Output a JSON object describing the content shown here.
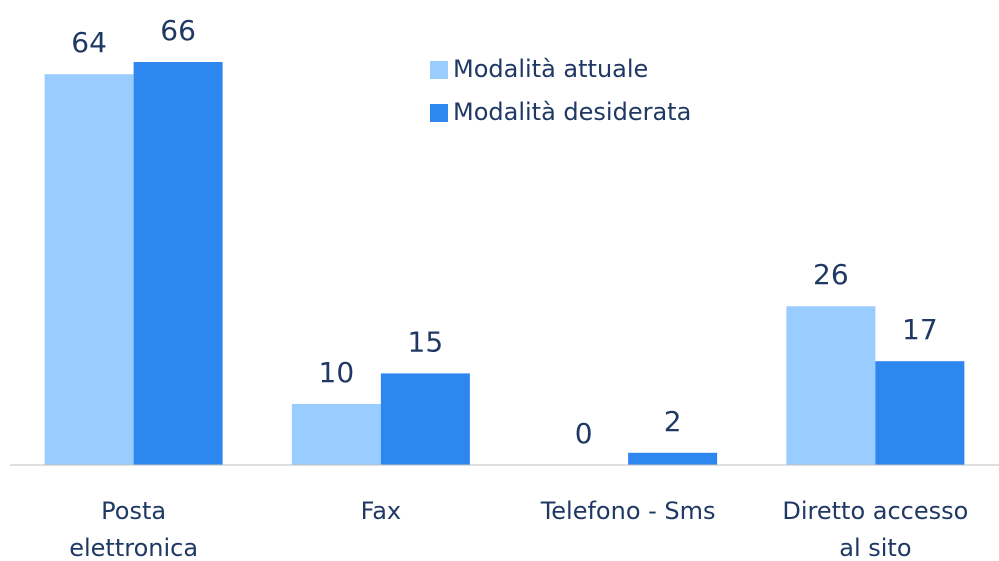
{
  "chart_data": {
    "type": "bar",
    "categories": [
      [
        "Posta",
        "elettronica"
      ],
      [
        "Fax"
      ],
      [
        "Telefono - Sms"
      ],
      [
        "Diretto accesso",
        "al sito"
      ]
    ],
    "series": [
      {
        "name": "Modalità attuale",
        "color": "#99ccff",
        "values": [
          64,
          10,
          0,
          26
        ]
      },
      {
        "name": "Modalità desiderata",
        "color": "#2e86ef",
        "values": [
          66,
          15,
          2,
          17
        ]
      }
    ]
  }
}
